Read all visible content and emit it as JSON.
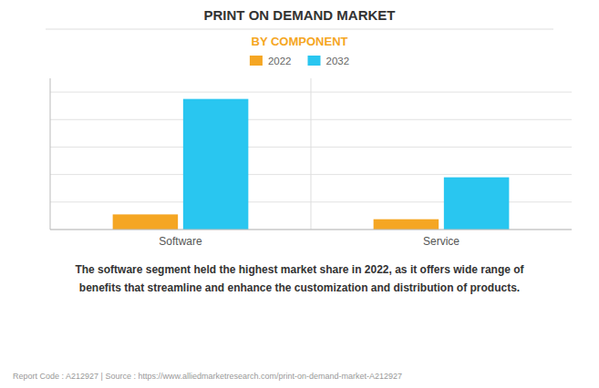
{
  "chart_data": {
    "type": "bar",
    "title": "PRINT ON DEMAND MARKET",
    "subtitle": "BY COMPONENT",
    "categories": [
      "Software",
      "Service"
    ],
    "series": [
      {
        "name": "2022",
        "color": "#F5A623",
        "values": [
          1.1,
          0.75
        ]
      },
      {
        "name": "2032",
        "color": "#29C6F0",
        "values": [
          9.5,
          3.8
        ]
      }
    ],
    "ylim": [
      0,
      11
    ],
    "yticks": [
      0,
      2,
      4,
      6,
      8,
      10
    ],
    "grid": true,
    "legend": "top",
    "tick_labels": "x",
    "annotation": "The software segment held the highest market share in 2022, as it offers wide range of\nbenefits that streamline and enhance the customization and distribution of products.",
    "footer": "Report Code : A212927  |  Source : https://www.alliedmarketresearch.com/print-on-demand-market-A212927"
  }
}
